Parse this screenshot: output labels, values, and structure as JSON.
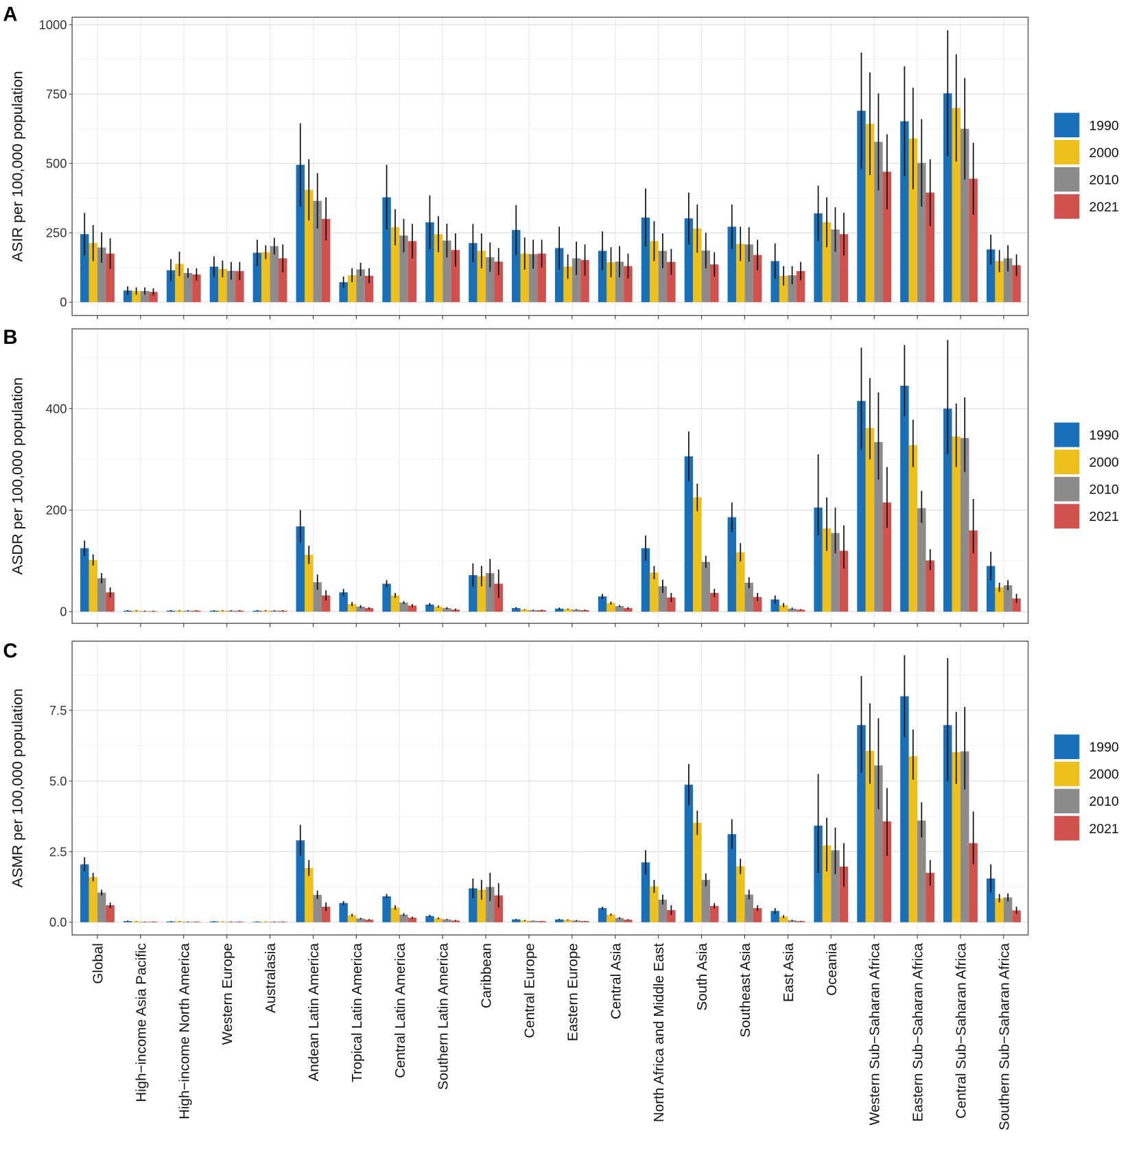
{
  "legend": {
    "labels": [
      "1990",
      "2000",
      "2010",
      "2021"
    ],
    "colors": [
      "#1a70b8",
      "#eec01a",
      "#8c8c8c",
      "#d2514d"
    ]
  },
  "categories": [
    "Global",
    "High−income Asia Pacific",
    "High−income North America",
    "Western Europe",
    "Australasia",
    "Andean Latin America",
    "Tropical Latin America",
    "Central Latin America",
    "Southern Latin America",
    "Caribbean",
    "Central Europe",
    "Eastern Europe",
    "Central Asia",
    "North Africa and Middle East",
    "South Asia",
    "Southeast Asia",
    "East Asia",
    "Oceania",
    "Western Sub−Saharan Africa",
    "Eastern Sub−Saharan Africa",
    "Central Sub−Saharan Africa",
    "Southern Sub−Saharan Africa"
  ],
  "chart_data": [
    {
      "panel": "A",
      "type": "bar",
      "ylabel": "ASIR per 100,000 population",
      "ylim": [
        -48,
        1027
      ],
      "yticks": [
        0,
        250,
        500,
        750,
        1000
      ],
      "ytick_labels": [
        "0",
        "250",
        "500",
        "750",
        "1000"
      ],
      "grid": true,
      "legend_position": "right",
      "series": [
        {
          "name": "1990",
          "values": [
            245,
            42,
            115,
            128,
            178,
            495,
            72,
            378,
            288,
            213,
            260,
            195,
            185,
            305,
            302,
            272,
            148,
            320,
            690,
            652,
            753,
            190
          ],
          "upper": [
            322,
            57,
            155,
            165,
            225,
            645,
            92,
            495,
            385,
            282,
            350,
            272,
            255,
            410,
            395,
            352,
            212,
            420,
            900,
            850,
            980,
            243
          ],
          "lower": [
            168,
            27,
            75,
            91,
            131,
            345,
            52,
            261,
            191,
            144,
            170,
            118,
            115,
            200,
            209,
            192,
            84,
            220,
            480,
            454,
            526,
            137
          ]
        },
        {
          "name": "2000",
          "values": [
            213,
            40,
            138,
            120,
            180,
            405,
            97,
            270,
            245,
            185,
            175,
            128,
            144,
            220,
            265,
            210,
            95,
            288,
            643,
            590,
            700,
            148
          ],
          "upper": [
            278,
            53,
            182,
            150,
            205,
            515,
            122,
            335,
            310,
            248,
            233,
            172,
            198,
            292,
            352,
            272,
            130,
            378,
            828,
            773,
            893,
            188
          ],
          "lower": [
            148,
            27,
            94,
            90,
            155,
            295,
            72,
            205,
            180,
            122,
            117,
            84,
            90,
            148,
            178,
            148,
            60,
            198,
            458,
            407,
            507,
            108
          ]
        },
        {
          "name": "2010",
          "values": [
            197,
            40,
            105,
            113,
            202,
            365,
            118,
            240,
            222,
            162,
            173,
            158,
            146,
            185,
            186,
            208,
            97,
            262,
            578,
            502,
            625,
            158
          ],
          "upper": [
            252,
            53,
            122,
            145,
            232,
            465,
            142,
            300,
            283,
            215,
            225,
            218,
            202,
            248,
            250,
            270,
            130,
            342,
            753,
            660,
            808,
            205
          ],
          "lower": [
            142,
            27,
            88,
            81,
            172,
            265,
            94,
            180,
            161,
            109,
            121,
            98,
            90,
            122,
            122,
            146,
            64,
            182,
            403,
            344,
            442,
            111
          ]
        },
        {
          "name": "2021",
          "values": [
            175,
            37,
            100,
            112,
            158,
            300,
            95,
            220,
            188,
            146,
            175,
            152,
            130,
            145,
            136,
            170,
            112,
            245,
            470,
            395,
            445,
            133
          ],
          "upper": [
            230,
            50,
            122,
            145,
            208,
            378,
            122,
            282,
            248,
            195,
            225,
            208,
            175,
            192,
            180,
            225,
            145,
            322,
            605,
            515,
            575,
            172
          ],
          "lower": [
            120,
            24,
            78,
            79,
            108,
            222,
            68,
            158,
            128,
            97,
            125,
            96,
            85,
            98,
            92,
            115,
            79,
            168,
            335,
            275,
            315,
            94
          ]
        }
      ]
    },
    {
      "panel": "B",
      "type": "bar",
      "ylabel": "ASDR per 100,000 population",
      "ylim": [
        -23,
        557
      ],
      "yticks": [
        0,
        200,
        400
      ],
      "ytick_labels": [
        "0",
        "200",
        "400"
      ],
      "grid": true,
      "legend_position": "right",
      "series": [
        {
          "name": "1990",
          "values": [
            125,
            2,
            2,
            2,
            2,
            168,
            38,
            55,
            14,
            72,
            7,
            6,
            30,
            125,
            306,
            186,
            24,
            205,
            415,
            445,
            400,
            90
          ],
          "upper": [
            140,
            3,
            3,
            3,
            3,
            200,
            45,
            62,
            17,
            95,
            9,
            8,
            35,
            150,
            355,
            215,
            32,
            310,
            520,
            525,
            535,
            118
          ],
          "lower": [
            110,
            1,
            1,
            1,
            1,
            136,
            31,
            48,
            11,
            49,
            5,
            4,
            25,
            100,
            257,
            157,
            16,
            150,
            320,
            385,
            310,
            62
          ]
        },
        {
          "name": "2000",
          "values": [
            102,
            2,
            2,
            2,
            2,
            112,
            15,
            32,
            10,
            70,
            4,
            5,
            17,
            77,
            225,
            117,
            13,
            164,
            362,
            328,
            345,
            48
          ],
          "upper": [
            113,
            3,
            3,
            3,
            3,
            130,
            19,
            37,
            12,
            90,
            5,
            6,
            20,
            90,
            252,
            135,
            17,
            225,
            460,
            378,
            410,
            57
          ],
          "lower": [
            91,
            1,
            1,
            1,
            1,
            94,
            11,
            27,
            8,
            50,
            3,
            4,
            14,
            64,
            198,
            99,
            9,
            120,
            300,
            285,
            285,
            39
          ]
        },
        {
          "name": "2010",
          "values": [
            66,
            1,
            2,
            2,
            2,
            58,
            10,
            18,
            7,
            76,
            3,
            4,
            11,
            50,
            98,
            57,
            6,
            155,
            334,
            204,
            342,
            52
          ],
          "upper": [
            76,
            2,
            3,
            3,
            3,
            73,
            13,
            21,
            9,
            104,
            4,
            5,
            13,
            63,
            110,
            68,
            8,
            205,
            432,
            238,
            422,
            62
          ],
          "lower": [
            56,
            0,
            1,
            1,
            1,
            43,
            7,
            15,
            5,
            48,
            2,
            3,
            9,
            37,
            86,
            46,
            4,
            115,
            260,
            175,
            275,
            42
          ]
        },
        {
          "name": "2021",
          "values": [
            38,
            1,
            2,
            2,
            2,
            32,
            7,
            12,
            4,
            55,
            3,
            3,
            7,
            28,
            37,
            29,
            4,
            120,
            215,
            101,
            160,
            26
          ],
          "upper": [
            48,
            2,
            3,
            3,
            3,
            42,
            9,
            15,
            6,
            83,
            4,
            4,
            9,
            37,
            45,
            37,
            5,
            170,
            285,
            123,
            222,
            35
          ],
          "lower": [
            28,
            0,
            1,
            1,
            1,
            22,
            5,
            9,
            2,
            27,
            2,
            2,
            5,
            19,
            29,
            21,
            3,
            85,
            165,
            82,
            115,
            17
          ]
        }
      ]
    },
    {
      "panel": "C",
      "type": "bar",
      "ylabel": "ASMR per 100,000 population",
      "ylim": [
        -0.45,
        9.95
      ],
      "yticks": [
        0,
        2.5,
        5,
        7.5
      ],
      "ytick_labels": [
        "0.0",
        "2.5",
        "5.0",
        "7.5"
      ],
      "grid": true,
      "legend_position": "right",
      "series": [
        {
          "name": "1990",
          "values": [
            2.05,
            0.04,
            0.03,
            0.03,
            0.02,
            2.9,
            0.68,
            0.92,
            0.22,
            1.2,
            0.1,
            0.1,
            0.5,
            2.12,
            4.87,
            3.12,
            0.4,
            3.42,
            6.98,
            8.0,
            6.98,
            1.55
          ],
          "upper": [
            2.3,
            0.06,
            0.04,
            0.04,
            0.03,
            3.45,
            0.75,
            1.0,
            0.26,
            1.55,
            0.12,
            0.12,
            0.55,
            2.55,
            5.6,
            3.65,
            0.5,
            5.25,
            8.72,
            9.45,
            9.35,
            2.05
          ],
          "lower": [
            1.8,
            0.02,
            0.02,
            0.02,
            0.01,
            2.35,
            0.61,
            0.84,
            0.18,
            0.85,
            0.08,
            0.08,
            0.45,
            1.69,
            4.14,
            2.59,
            0.3,
            1.75,
            5.3,
            6.55,
            5.0,
            1.05
          ]
        },
        {
          "name": "2000",
          "values": [
            1.6,
            0.03,
            0.03,
            0.02,
            0.02,
            1.92,
            0.25,
            0.52,
            0.14,
            1.15,
            0.06,
            0.08,
            0.27,
            1.27,
            3.52,
            1.98,
            0.2,
            2.72,
            6.07,
            5.88,
            6.02,
            0.85
          ],
          "upper": [
            1.75,
            0.04,
            0.04,
            0.03,
            0.03,
            2.2,
            0.3,
            0.6,
            0.17,
            1.5,
            0.08,
            0.1,
            0.31,
            1.5,
            3.95,
            2.25,
            0.25,
            3.7,
            7.75,
            6.82,
            7.45,
            1.0
          ],
          "lower": [
            1.45,
            0.02,
            0.02,
            0.01,
            0.01,
            1.64,
            0.2,
            0.44,
            0.11,
            0.8,
            0.04,
            0.06,
            0.23,
            1.04,
            3.09,
            1.71,
            0.15,
            1.8,
            4.9,
            5.05,
            4.9,
            0.7
          ]
        },
        {
          "name": "2010",
          "values": [
            1.05,
            0.02,
            0.02,
            0.02,
            0.02,
            0.97,
            0.13,
            0.27,
            0.1,
            1.25,
            0.05,
            0.06,
            0.15,
            0.8,
            1.5,
            0.98,
            0.07,
            2.55,
            5.55,
            3.6,
            6.05,
            0.88
          ],
          "upper": [
            1.15,
            0.03,
            0.03,
            0.03,
            0.03,
            1.12,
            0.16,
            0.32,
            0.12,
            1.75,
            0.06,
            0.08,
            0.18,
            0.98,
            1.73,
            1.15,
            0.09,
            3.35,
            7.22,
            4.25,
            7.62,
            1.02
          ],
          "lower": [
            0.95,
            0.01,
            0.01,
            0.01,
            0.01,
            0.82,
            0.1,
            0.22,
            0.08,
            0.75,
            0.04,
            0.04,
            0.12,
            0.62,
            1.27,
            0.81,
            0.05,
            1.7,
            4.0,
            3.0,
            4.7,
            0.74
          ]
        },
        {
          "name": "2021",
          "values": [
            0.6,
            0.02,
            0.02,
            0.02,
            0.02,
            0.55,
            0.09,
            0.16,
            0.06,
            0.95,
            0.04,
            0.04,
            0.09,
            0.43,
            0.58,
            0.5,
            0.04,
            1.97,
            3.57,
            1.75,
            2.8,
            0.42
          ],
          "upper": [
            0.7,
            0.03,
            0.03,
            0.03,
            0.03,
            0.7,
            0.11,
            0.2,
            0.08,
            1.38,
            0.05,
            0.05,
            0.11,
            0.6,
            0.68,
            0.6,
            0.05,
            2.8,
            4.75,
            2.2,
            3.92,
            0.55
          ],
          "lower": [
            0.5,
            0.01,
            0.01,
            0.01,
            0.01,
            0.4,
            0.07,
            0.12,
            0.04,
            0.52,
            0.03,
            0.03,
            0.07,
            0.26,
            0.48,
            0.4,
            0.03,
            1.25,
            2.35,
            1.3,
            2.05,
            0.29
          ]
        }
      ]
    }
  ]
}
